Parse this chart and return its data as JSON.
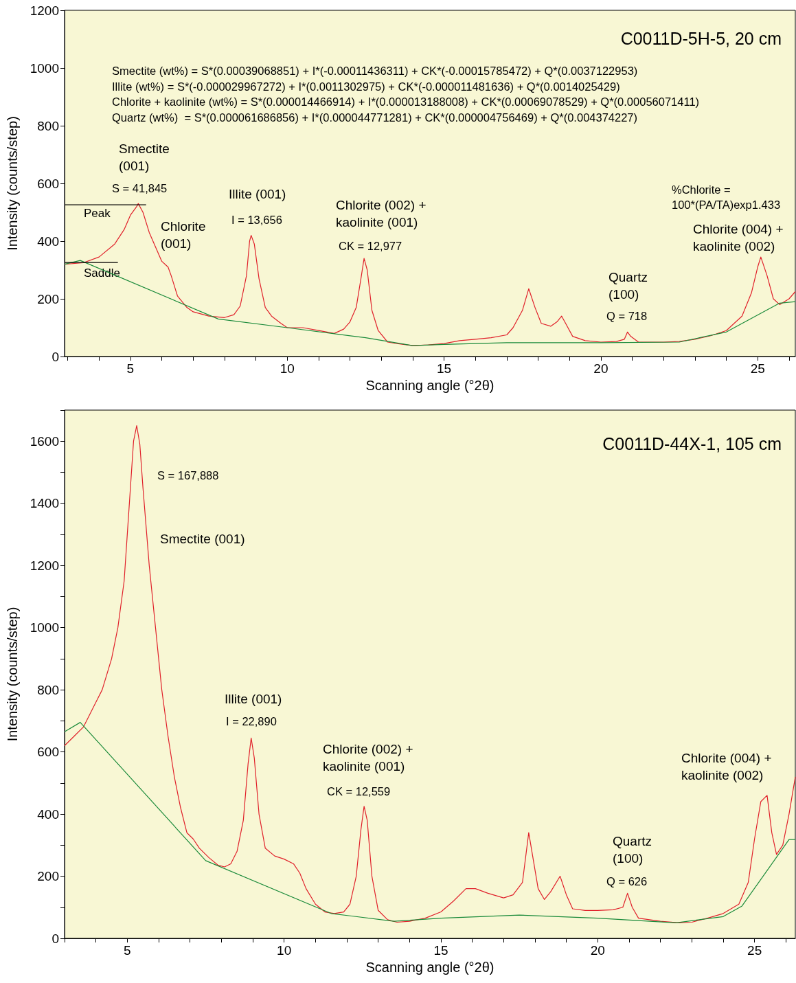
{
  "chart_data": [
    {
      "type": "line",
      "title": "C0011D-5H-5, 20 cm",
      "xlabel": "Scanning angle (°2θ)",
      "ylabel": "Intensity (counts/step)",
      "xlim": [
        2.9,
        26.2
      ],
      "xticks": [
        {
          "value": 3,
          "label": null
        },
        {
          "value": 4,
          "label": null
        },
        5,
        {
          "value": 6,
          "label": null
        },
        {
          "value": 7,
          "label": null
        },
        {
          "value": 8,
          "label": null
        },
        {
          "value": 9,
          "label": null
        },
        10,
        {
          "value": 11,
          "label": null
        },
        {
          "value": 12,
          "label": null
        },
        {
          "value": 13,
          "label": null
        },
        {
          "value": 14,
          "label": null
        },
        15,
        {
          "value": 16,
          "label": null
        },
        {
          "value": 17,
          "label": null
        },
        {
          "value": 18,
          "label": null
        },
        {
          "value": 19,
          "label": null
        },
        20,
        {
          "value": 21,
          "label": null
        },
        {
          "value": 22,
          "label": null
        },
        {
          "value": 23,
          "label": null
        },
        {
          "value": 24,
          "label": null
        },
        25,
        {
          "value": 26,
          "label": null
        }
      ],
      "ylim": [
        0,
        1200
      ],
      "yticks": [
        0,
        200,
        400,
        600,
        800,
        1000,
        1200
      ],
      "series": [
        {
          "color": "#e0202a",
          "x": [
            2.9,
            3.5,
            4.0,
            4.5,
            4.8,
            5.0,
            5.2,
            5.25,
            5.4,
            5.6,
            5.8,
            6.0,
            6.2,
            6.3,
            6.5,
            6.8,
            7.0,
            7.5,
            8.0,
            8.3,
            8.5,
            8.7,
            8.8,
            8.85,
            8.95,
            9.1,
            9.3,
            9.5,
            9.8,
            10.0,
            10.5,
            11.0,
            11.5,
            11.8,
            12.0,
            12.2,
            12.35,
            12.45,
            12.55,
            12.7,
            12.9,
            13.2,
            13.5,
            14.0,
            14.5,
            15.0,
            15.5,
            16.0,
            16.5,
            17.0,
            17.2,
            17.5,
            17.7,
            17.9,
            18.1,
            18.4,
            18.6,
            18.75,
            18.9,
            19.1,
            19.5,
            20.0,
            20.5,
            20.75,
            20.85,
            20.95,
            21.2,
            22.0,
            22.5,
            23.0,
            23.5,
            24.0,
            24.5,
            24.8,
            25.0,
            25.1,
            25.3,
            25.5,
            25.7,
            26.0,
            26.2
          ],
          "values": [
            320,
            325,
            345,
            390,
            440,
            490,
            520,
            530,
            500,
            430,
            380,
            330,
            310,
            280,
            210,
            170,
            155,
            140,
            135,
            145,
            175,
            280,
            400,
            420,
            390,
            270,
            170,
            140,
            115,
            100,
            100,
            90,
            80,
            95,
            120,
            170,
            270,
            340,
            300,
            160,
            90,
            50,
            45,
            38,
            40,
            45,
            55,
            60,
            65,
            75,
            100,
            160,
            235,
            170,
            115,
            105,
            120,
            140,
            110,
            70,
            55,
            50,
            52,
            60,
            85,
            70,
            50,
            50,
            52,
            60,
            72,
            90,
            140,
            220,
            310,
            345,
            280,
            200,
            180,
            200,
            225
          ]
        },
        {
          "color": "#1a8a3a",
          "x": [
            2.9,
            3.4,
            7.8,
            10,
            12.5,
            14,
            15,
            17,
            20,
            22.5,
            24,
            25.7,
            26.2
          ],
          "values": [
            320,
            333,
            130,
            100,
            65,
            38,
            42,
            48,
            48,
            50,
            85,
            185,
            190
          ]
        },
        {
          "color": "#000000",
          "x": [
            2.9,
            5.5
          ],
          "values": [
            526,
            526
          ]
        },
        {
          "color": "#000000",
          "x": [
            2.9,
            4.6
          ],
          "values": [
            326,
            326
          ]
        }
      ],
      "annotations": [
        "Smectite (wt%) = S*(0.00039068851) + I*(-0.00011436311) + CK*(-0.00015785472) + Q*(0.0037122953)",
        "Illite (wt%) = S*(-0.000029967272) + I*(0.0011302975) + CK*(-0.000011481636) + Q*(0.0014025429)",
        "Chlorite + kaolinite (wt%) = S*(0.000014466914) + I*(0.000013188008) + CK*(0.00069078529) + Q*(0.00056071411)",
        "Quartz (wt%)  = S*(0.000061686856) + I*(0.000044771281) + CK*(0.000004756469) + Q*(0.004374227)",
        "Smectite\n(001)",
        "S = 41,845",
        "Illite (001)",
        "I = 13,656",
        "Chlorite\n(001)",
        "Chlorite (002) +\nkaolinite (001)",
        "CK = 12,977",
        "Quartz\n(100)",
        "Q = 718",
        "%Chlorite =\n100*(PA/TA)exp1.433",
        "Chlorite (004) +\nkaolinite (002)",
        "Peak",
        "Saddle"
      ]
    },
    {
      "type": "line",
      "title": "C0011D-44X-1, 105 cm",
      "xlabel": "Scanning angle (°2θ)",
      "ylabel": "Intensity (counts/step)",
      "xlim": [
        3.0,
        26.3
      ],
      "xticks": [
        {
          "value": 3,
          "label": null
        },
        {
          "value": 4,
          "label": null
        },
        5,
        {
          "value": 6,
          "label": null
        },
        {
          "value": 7,
          "label": null
        },
        {
          "value": 8,
          "label": null
        },
        {
          "value": 9,
          "label": null
        },
        10,
        {
          "value": 11,
          "label": null
        },
        {
          "value": 12,
          "label": null
        },
        {
          "value": 13,
          "label": null
        },
        {
          "value": 14,
          "label": null
        },
        15,
        {
          "value": 16,
          "label": null
        },
        {
          "value": 17,
          "label": null
        },
        {
          "value": 18,
          "label": null
        },
        {
          "value": 19,
          "label": null
        },
        20,
        {
          "value": 21,
          "label": null
        },
        {
          "value": 22,
          "label": null
        },
        {
          "value": 23,
          "label": null
        },
        {
          "value": 24,
          "label": null
        },
        25,
        {
          "value": 26,
          "label": null
        }
      ],
      "ylim": [
        0,
        1700
      ],
      "yticks": [
        0,
        {
          "value": 100,
          "label": null
        },
        200,
        {
          "value": 300,
          "label": null
        },
        400,
        {
          "value": 500,
          "label": null
        },
        600,
        {
          "value": 700,
          "label": null
        },
        800,
        {
          "value": 900,
          "label": null
        },
        1000,
        {
          "value": 1100,
          "label": null
        },
        1200,
        {
          "value": 1300,
          "label": null
        },
        1400,
        {
          "value": 1500,
          "label": null
        },
        1600,
        {
          "value": 1700,
          "label": null
        }
      ],
      "series": [
        {
          "color": "#e0202a",
          "x": [
            3.0,
            3.3,
            3.6,
            3.9,
            4.2,
            4.5,
            4.7,
            4.9,
            5.0,
            5.1,
            5.2,
            5.3,
            5.4,
            5.5,
            5.7,
            5.9,
            6.1,
            6.3,
            6.5,
            6.7,
            6.9,
            7.1,
            7.3,
            7.6,
            7.9,
            8.1,
            8.3,
            8.5,
            8.7,
            8.85,
            8.95,
            9.05,
            9.2,
            9.4,
            9.7,
            10.0,
            10.3,
            10.5,
            10.7,
            11.0,
            11.3,
            11.6,
            11.9,
            12.1,
            12.3,
            12.45,
            12.55,
            12.65,
            12.8,
            13.0,
            13.3,
            13.6,
            14.0,
            14.5,
            15.0,
            15.4,
            15.8,
            16.1,
            16.5,
            17.0,
            17.3,
            17.6,
            17.8,
            17.95,
            18.1,
            18.3,
            18.5,
            18.8,
            19.0,
            19.2,
            19.6,
            20.0,
            20.5,
            20.8,
            20.95,
            21.1,
            21.3,
            22.0,
            22.6,
            23.0,
            23.5,
            24.0,
            24.5,
            24.8,
            25.0,
            25.2,
            25.4,
            25.55,
            25.7,
            25.9,
            26.1,
            26.3
          ],
          "values": [
            620,
            650,
            680,
            740,
            800,
            900,
            1000,
            1150,
            1300,
            1450,
            1600,
            1650,
            1590,
            1450,
            1200,
            1000,
            800,
            650,
            520,
            420,
            340,
            320,
            290,
            260,
            235,
            230,
            240,
            280,
            380,
            560,
            645,
            580,
            400,
            290,
            265,
            255,
            240,
            210,
            160,
            110,
            85,
            80,
            85,
            110,
            200,
            350,
            425,
            380,
            200,
            90,
            60,
            52,
            55,
            65,
            85,
            120,
            160,
            160,
            145,
            130,
            140,
            180,
            340,
            250,
            160,
            125,
            150,
            200,
            140,
            95,
            90,
            90,
            92,
            100,
            145,
            100,
            65,
            55,
            50,
            52,
            65,
            80,
            110,
            180,
            320,
            440,
            460,
            340,
            270,
            300,
            400,
            520
          ]
        },
        {
          "color": "#1a8a3a",
          "x": [
            3.0,
            3.5,
            7.5,
            11.5,
            13.5,
            15,
            17.5,
            20,
            22.5,
            24,
            24.6,
            26.1,
            26.3
          ],
          "values": [
            665,
            695,
            250,
            80,
            55,
            65,
            75,
            65,
            50,
            70,
            104,
            318,
            318
          ]
        }
      ],
      "annotations": [
        "S = 167,888",
        "Smectite (001)",
        "Illite (001)",
        "I = 22,890",
        "Chlorite (002) +\nkaolinite (001)",
        "CK = 12,559",
        "Quartz\n(100)",
        "Q = 626",
        "Chlorite (004) +\nkaolinite (002)"
      ]
    }
  ]
}
